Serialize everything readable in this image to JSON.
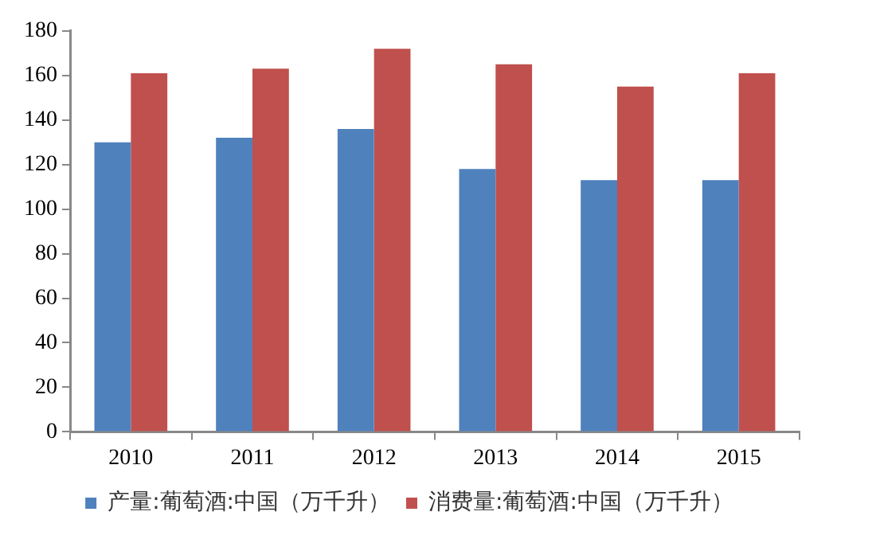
{
  "chart_data": {
    "type": "bar",
    "categories": [
      "2010",
      "2011",
      "2012",
      "2013",
      "2014",
      "2015"
    ],
    "series": [
      {
        "name": "产量:葡萄酒:中国（万千升）",
        "color": "#4f81bd",
        "values": [
          130,
          132,
          136,
          118,
          113,
          113
        ]
      },
      {
        "name": "消费量:葡萄酒:中国（万千升）",
        "color": "#c0504d",
        "values": [
          161,
          163,
          172,
          165,
          155,
          161
        ]
      }
    ],
    "ylim": [
      0,
      180
    ],
    "yticks": [
      0,
      20,
      40,
      60,
      80,
      100,
      120,
      140,
      160,
      180
    ],
    "grid": false,
    "legend": "bottom"
  }
}
